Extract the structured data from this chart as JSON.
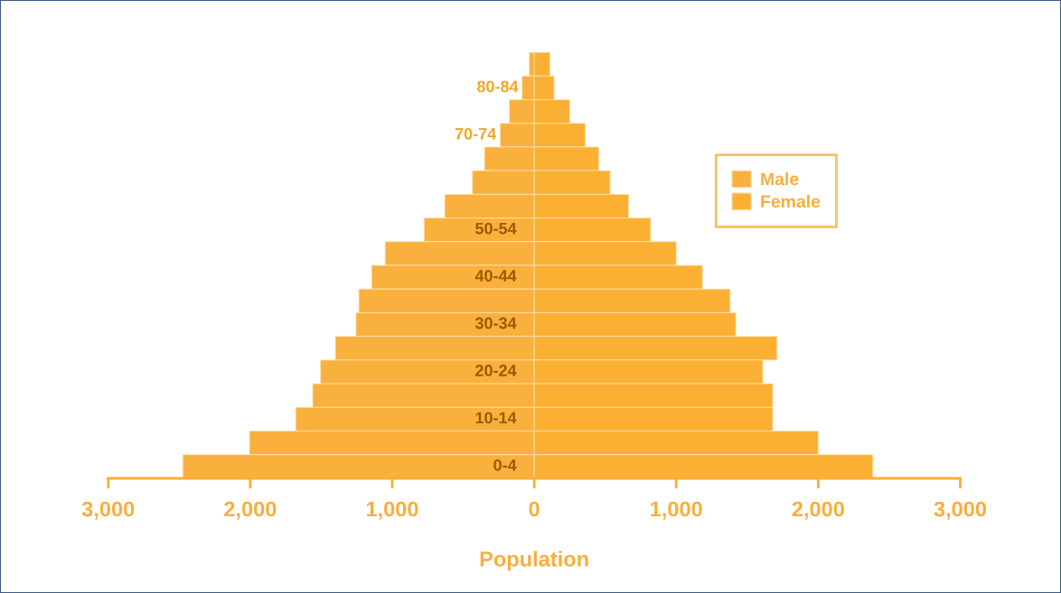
{
  "chart_data": {
    "type": "bar",
    "orientation": "horizontal",
    "xlabel": "Population",
    "categories": [
      null,
      "80-84",
      null,
      "70-74",
      null,
      null,
      null,
      "50-54",
      null,
      "40-44",
      null,
      "30-34",
      null,
      "20-24",
      null,
      "10-14",
      null,
      "0-4"
    ],
    "series": [
      {
        "name": "Male",
        "color": "#fab03c",
        "values": [
          -35,
          -85,
          -175,
          -240,
          -350,
          -435,
          -630,
          -775,
          -1050,
          -1145,
          -1235,
          -1255,
          -1400,
          -1505,
          -1560,
          -1680,
          -2005,
          -2475
        ]
      },
      {
        "name": "Female",
        "color": "#fbb034",
        "values": [
          110,
          140,
          250,
          360,
          455,
          535,
          665,
          820,
          1000,
          1185,
          1380,
          1420,
          1710,
          1610,
          1680,
          1680,
          2000,
          2385
        ]
      }
    ],
    "xlim": [
      -3000,
      3000
    ],
    "xticks": [
      {
        "value": -3000,
        "label": "3,000"
      },
      {
        "value": -2000,
        "label": "2,000"
      },
      {
        "value": -1000,
        "label": "1,000"
      },
      0,
      {
        "value": 1000,
        "label": "1,000"
      },
      {
        "value": 2000,
        "label": "2,000"
      },
      {
        "value": 3000,
        "label": "3,000"
      }
    ],
    "grid": false,
    "stacked": true,
    "legend": "top right"
  }
}
